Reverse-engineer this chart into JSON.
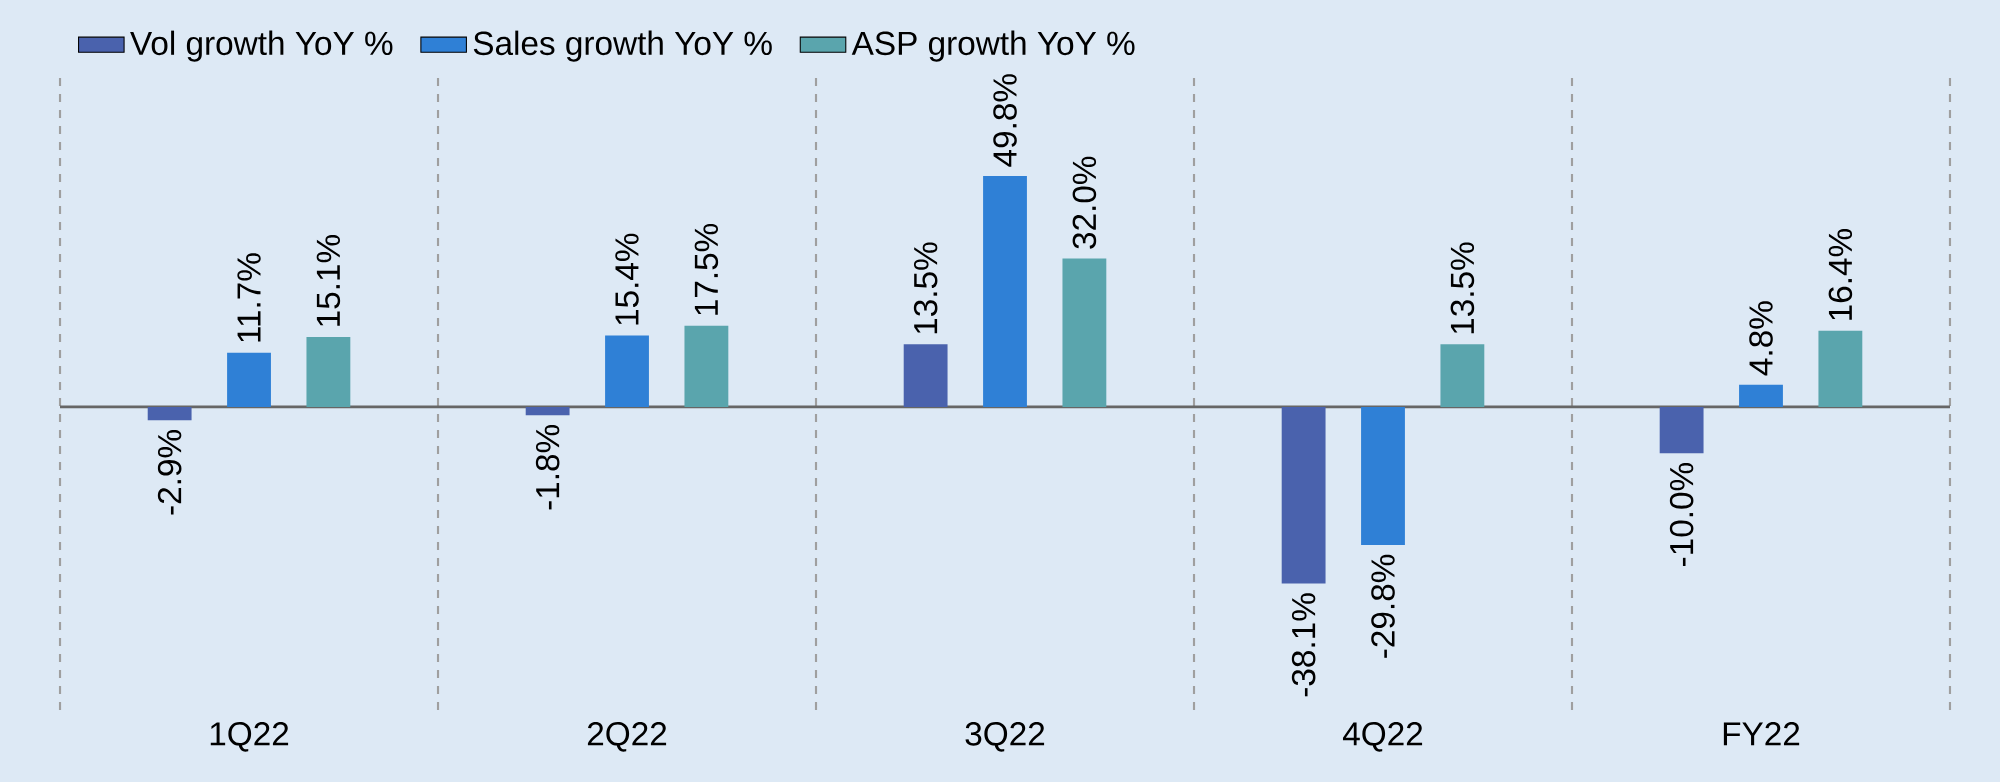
{
  "chart_data": {
    "type": "bar",
    "categories": [
      "1Q22",
      "2Q22",
      "3Q22",
      "4Q22",
      "FY22"
    ],
    "series": [
      {
        "name": "Vol growth YoY %",
        "color": "#4a62ad",
        "values": [
          -2.9,
          -1.8,
          13.5,
          -38.1,
          -10.0
        ],
        "value_labels": [
          "-2.9%",
          "-1.8%",
          "13.5%",
          "-38.1%",
          "-10.0%"
        ]
      },
      {
        "name": "Sales growth YoY %",
        "color": "#2f80d6",
        "values": [
          11.7,
          15.4,
          49.8,
          -29.8,
          4.8
        ],
        "value_labels": [
          "11.7%",
          "15.4%",
          "49.8%",
          "-29.8%",
          "4.8%"
        ]
      },
      {
        "name": "ASP growth YoY %",
        "color": "#5aa5ad",
        "values": [
          15.1,
          17.5,
          32.0,
          13.5,
          16.4
        ],
        "value_labels": [
          "15.1%",
          "17.5%",
          "32.0%",
          "13.5%",
          "16.4%"
        ]
      }
    ],
    "legend": "top left",
    "grid": "x"
  }
}
